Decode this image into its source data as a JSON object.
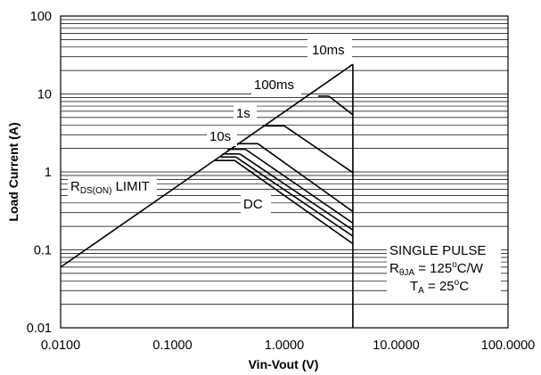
{
  "chart_data": {
    "type": "line",
    "title": "",
    "xlabel": "Vin-Vout (V)",
    "ylabel": "Load Current  (A)",
    "x_scale": "log",
    "y_scale": "log",
    "xlim": [
      0.01,
      100
    ],
    "ylim": [
      0.01,
      100
    ],
    "grid": "horizontal minor lines",
    "x_ticks": [
      "0.0100",
      "0.1000",
      "1.0000",
      "10.0000",
      "100.0000"
    ],
    "y_ticks": [
      "0.01",
      "0.1",
      "1",
      "10",
      "100"
    ],
    "series": [
      {
        "name": "",
        "points": [
          [
            0.01,
            0.06
          ],
          [
            4.1,
            24
          ]
        ]
      },
      {
        "name": "",
        "points": [
          [
            4.1,
            24
          ],
          [
            4.1,
            0.01
          ]
        ]
      },
      {
        "name": "",
        "points": [
          [
            2.5,
            9.4
          ],
          [
            4.1,
            5.4
          ]
        ]
      },
      {
        "name": "",
        "points": [
          [
            1.0,
            3.9
          ],
          [
            4.1,
            0.98
          ]
        ]
      },
      {
        "name": "",
        "points": [
          [
            0.58,
            2.3
          ],
          [
            4.1,
            0.31
          ]
        ]
      },
      {
        "name": "",
        "points": [
          [
            0.45,
            1.95
          ],
          [
            4.1,
            0.22
          ]
        ]
      },
      {
        "name": "",
        "points": [
          [
            0.4,
            1.7
          ],
          [
            4.1,
            0.18
          ]
        ]
      },
      {
        "name": "",
        "points": [
          [
            0.37,
            1.55
          ],
          [
            4.1,
            0.15
          ]
        ]
      },
      {
        "name": "",
        "points": [
          [
            0.36,
            1.4
          ],
          [
            4.1,
            0.12
          ]
        ]
      }
    ],
    "plateaus": [
      {
        "from": [
          2.0,
          9.4
        ],
        "to": [
          2.5,
          9.4
        ]
      },
      {
        "from": [
          0.64,
          3.9
        ],
        "to": [
          1.0,
          3.9
        ]
      },
      {
        "from": [
          0.37,
          2.3
        ],
        "to": [
          0.58,
          2.3
        ]
      },
      {
        "from": [
          0.31,
          1.95
        ],
        "to": [
          0.45,
          1.95
        ]
      },
      {
        "from": [
          0.28,
          1.7
        ],
        "to": [
          0.4,
          1.7
        ]
      },
      {
        "from": [
          0.27,
          1.55
        ],
        "to": [
          0.37,
          1.55
        ]
      },
      {
        "from": [
          0.24,
          1.4
        ],
        "to": [
          0.36,
          1.4
        ]
      }
    ],
    "annotations": {
      "t10ms": "10ms",
      "t100ms": "100ms",
      "t1s": "1s",
      "t10s": "10s",
      "dc": "DC",
      "rds_main": "R",
      "rds_sub": "DS(ON)",
      "rds_tail": " LIMIT",
      "single_pulse": "SINGLE PULSE",
      "rth_main": "R",
      "rth_sub": "θJA",
      "rth_eq": " = 125",
      "rth_deg": "o",
      "rth_unit": "C/W",
      "ta_main": "T",
      "ta_sub": "A",
      "ta_eq": " = 25",
      "ta_deg": "o",
      "ta_unit": "C"
    }
  }
}
